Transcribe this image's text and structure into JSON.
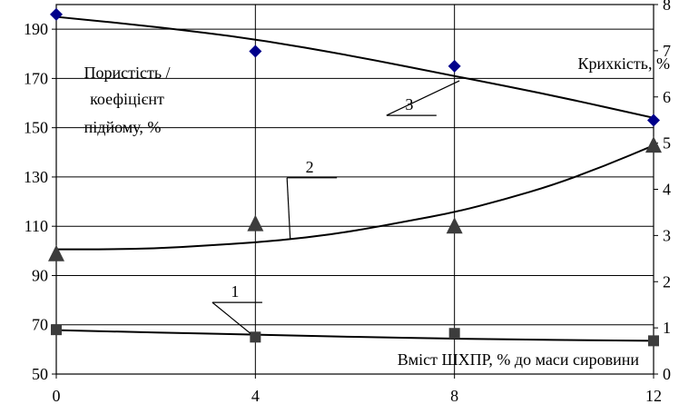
{
  "chart_data": {
    "type": "scatter",
    "x_ticks": [
      "0",
      "4",
      "8",
      "12"
    ],
    "x_values": [
      0,
      4,
      8,
      12
    ],
    "xlim": [
      0,
      12
    ],
    "y_left_ticks": [
      "50",
      "70",
      "90",
      "110",
      "130",
      "150",
      "170",
      "190"
    ],
    "ylim_left": [
      50,
      200
    ],
    "y_right_ticks": [
      "0",
      "1",
      "2",
      "3",
      "4",
      "5",
      "6",
      "7",
      "8"
    ],
    "ylim_right": [
      0,
      8
    ],
    "ylabel_left": [
      "Пористість /",
      "коефіцієнт",
      "підйому, %"
    ],
    "ylabel_right": "Крихкість, %",
    "xlabel": "Вміст ШХПР, % до маси сировини",
    "grid": "vertical",
    "series": [
      {
        "name": "1",
        "axis": "right",
        "marker": "square",
        "color": "#3c3c3c",
        "points": [
          [
            0,
            0.96
          ],
          [
            4,
            0.8
          ],
          [
            8,
            0.88
          ],
          [
            12,
            0.72
          ]
        ],
        "trend": [
          [
            0,
            0.95
          ],
          [
            4,
            0.85
          ],
          [
            8,
            0.76
          ],
          [
            12,
            0.72
          ]
        ]
      },
      {
        "name": "2",
        "axis": "right",
        "marker": "triangle",
        "color": "#3c3c3c",
        "points": [
          [
            0,
            2.6
          ],
          [
            4,
            3.25
          ],
          [
            8,
            3.2
          ],
          [
            12,
            4.95
          ]
        ],
        "trend": [
          [
            0,
            2.7
          ],
          [
            1,
            2.7
          ],
          [
            2,
            2.72
          ],
          [
            3,
            2.78
          ],
          [
            4,
            2.85
          ],
          [
            5,
            2.95
          ],
          [
            6,
            3.1
          ],
          [
            7,
            3.3
          ],
          [
            8,
            3.5
          ],
          [
            9,
            3.78
          ],
          [
            10,
            4.1
          ],
          [
            11,
            4.5
          ],
          [
            12,
            4.95
          ]
        ]
      },
      {
        "name": "3",
        "axis": "left",
        "marker": "diamond",
        "color": "#00008b",
        "points": [
          [
            0,
            196
          ],
          [
            4,
            181
          ],
          [
            8,
            175
          ],
          [
            12,
            153
          ]
        ],
        "trend": [
          [
            0,
            195
          ],
          [
            2,
            191
          ],
          [
            4,
            186
          ],
          [
            6,
            179
          ],
          [
            8,
            171
          ],
          [
            10,
            163
          ],
          [
            12,
            154
          ]
        ]
      }
    ],
    "labels": [
      {
        "text": "1",
        "x": 3.5,
        "y": 1.55,
        "leader_to": [
          3.9,
          0.88
        ],
        "axis": "right"
      },
      {
        "text": "2",
        "x": 5.0,
        "y": 4.25,
        "leader_to": [
          4.7,
          2.92
        ],
        "axis": "right"
      },
      {
        "text": "3",
        "x": 7.0,
        "y": 5.6,
        "leader_to": [
          8.1,
          6.35
        ],
        "axis": "right"
      }
    ]
  }
}
